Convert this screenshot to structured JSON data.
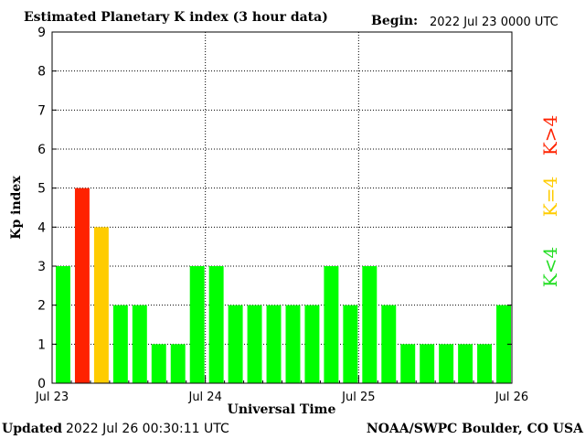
{
  "chart_data": {
    "type": "bar",
    "title": "Estimated Planetary K index (3 hour data)",
    "begin_label": "Begin:",
    "begin_value": "2022 Jul 23 0000 UTC",
    "xlabel": "Universal Time",
    "ylabel": "Kp index",
    "ylim": [
      0,
      9
    ],
    "yticks": [
      0,
      1,
      2,
      3,
      4,
      5,
      6,
      7,
      8,
      9
    ],
    "xticks": [
      "Jul 23",
      "Jul 24",
      "Jul 25",
      "Jul 26"
    ],
    "grid": true,
    "values": [
      3,
      5,
      4,
      2,
      2,
      1,
      1,
      3,
      3,
      2,
      2,
      2,
      2,
      2,
      3,
      2,
      3,
      2,
      1,
      1,
      1,
      1,
      1,
      2
    ],
    "colors": {
      "below": "#00ff00",
      "equal": "#ffcc00",
      "above": "#ff2200"
    },
    "legend": [
      {
        "label": "K<4",
        "color": "#22dd22"
      },
      {
        "label": "K=4",
        "color": "#ffcc00"
      },
      {
        "label": "K>4",
        "color": "#ff2200"
      }
    ],
    "legend_placement": "right"
  },
  "footer": {
    "updated_label": "Updated",
    "updated_value": "2022 Jul 26 00:30:11 UTC",
    "source": "NOAA/SWPC Boulder, CO USA"
  }
}
